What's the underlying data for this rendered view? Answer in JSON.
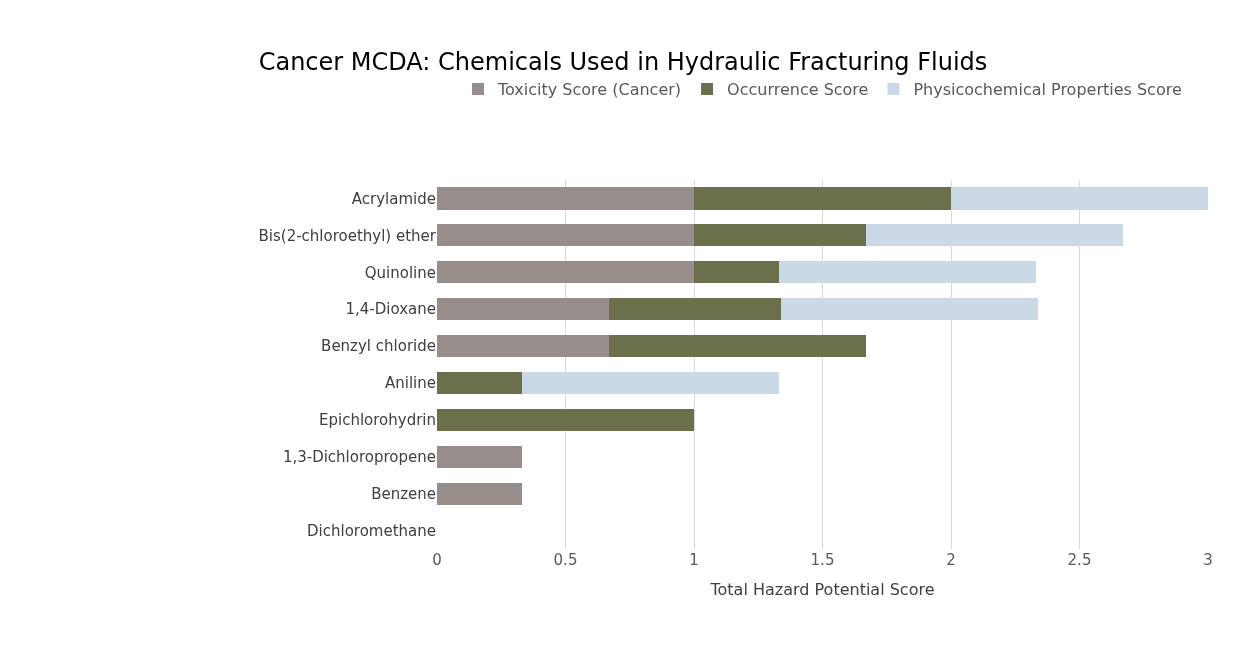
{
  "chart_data": {
    "type": "bar",
    "orientation": "horizontal",
    "stacked": true,
    "title": "Cancer MCDA: Chemicals Used in Hydraulic Fracturing Fluids",
    "xlabel": "Total Hazard Potential Score",
    "categories": [
      "Acrylamide",
      "Bis(2-chloroethyl) ether",
      "Quinoline",
      "1,4-Dioxane",
      "Benzyl chloride",
      "Aniline",
      "Epichlorohydrin",
      "1,3-Dichloropropene",
      "Benzene",
      "Dichloromethane"
    ],
    "series": [
      {
        "name": "Toxicity Score (Cancer)",
        "color": "#978e8b",
        "values": [
          1,
          1,
          1,
          0.67,
          0.67,
          0,
          0,
          0.33,
          0.33,
          0
        ]
      },
      {
        "name": "Occurrence Score",
        "color": "#6b6f4c",
        "values": [
          1,
          0.67,
          0.33,
          0.67,
          1,
          0.33,
          1,
          0,
          0,
          0
        ]
      },
      {
        "name": "Physicochemical Properties Score",
        "color": "#cbd9e7",
        "values": [
          1,
          1,
          1,
          1,
          0,
          1,
          0,
          0,
          0,
          0
        ]
      }
    ],
    "xlim": [
      0,
      3
    ],
    "xticks": [
      0,
      0.5,
      1,
      1.5,
      2,
      2.5,
      3
    ],
    "grid": "x",
    "legend": "top"
  }
}
